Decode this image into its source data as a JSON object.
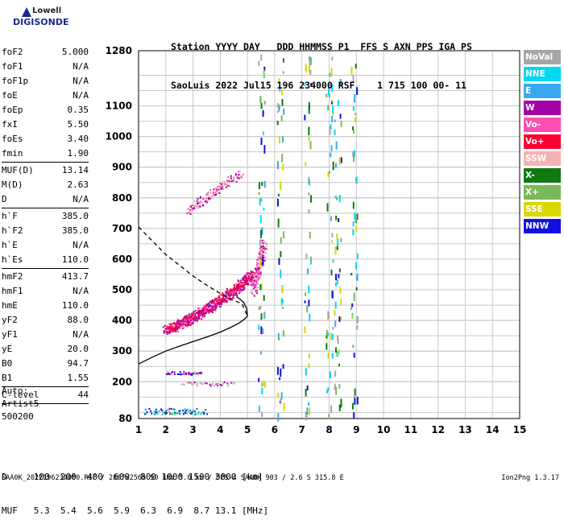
{
  "logo": {
    "line1": "Lowell",
    "line2": "DIGISONDE"
  },
  "header": {
    "line1": "Station YYYY DAY   DDD HHMMSS P1  FFS S AXN PPS IGA PS",
    "line2": "SaoLuis 2022 Jul15 196 234000 RSF    1 715 100 00- 11"
  },
  "params": {
    "g1": [
      {
        "name": "foF2",
        "value": "5.000"
      },
      {
        "name": "foF1",
        "value": "N/A"
      },
      {
        "name": "foF1p",
        "value": "N/A"
      },
      {
        "name": "foE",
        "value": "N/A"
      },
      {
        "name": "foEp",
        "value": "0.35"
      },
      {
        "name": "fxI",
        "value": "5.50"
      },
      {
        "name": "foEs",
        "value": "3.40"
      },
      {
        "name": "fmin",
        "value": "1.90"
      }
    ],
    "g2": [
      {
        "name": "MUF(D)",
        "value": "13.14"
      },
      {
        "name": "M(D)",
        "value": "2.63"
      },
      {
        "name": "D",
        "value": "N/A"
      }
    ],
    "g3": [
      {
        "name": "h`F",
        "value": "385.0"
      },
      {
        "name": "h`F2",
        "value": "385.0"
      },
      {
        "name": "h`E",
        "value": "N/A"
      },
      {
        "name": "h`Es",
        "value": "110.0"
      }
    ],
    "g4": [
      {
        "name": "hmF2",
        "value": "413.7"
      },
      {
        "name": "hmF1",
        "value": "N/A"
      },
      {
        "name": "hmE",
        "value": "110.0"
      },
      {
        "name": "yF2",
        "value": "88.0"
      },
      {
        "name": "yF1",
        "value": "N/A"
      },
      {
        "name": "yE",
        "value": "20.0"
      },
      {
        "name": "B0",
        "value": "94.7"
      },
      {
        "name": "B1",
        "value": "1.55"
      }
    ],
    "g5": [
      {
        "name": "C-level",
        "value": "44"
      }
    ]
  },
  "auto": {
    "line1": "Auto:",
    "line2": "Artist5",
    "line3": "500200"
  },
  "legend": [
    {
      "label": "NoVal",
      "color": "#a6a6a6"
    },
    {
      "label": "NNE",
      "color": "#00d9f0"
    },
    {
      "label": "E",
      "color": "#3aa8f0"
    },
    {
      "label": "W",
      "color": "#a400a8"
    },
    {
      "label": "Vo-",
      "color": "#ff4fb0"
    },
    {
      "label": "Vo+",
      "color": "#ff0033"
    },
    {
      "label": "SSW",
      "color": "#f4b4b4"
    },
    {
      "label": "X-",
      "color": "#0f7a0f"
    },
    {
      "label": "X+",
      "color": "#7ab85a"
    },
    {
      "label": "SSE",
      "color": "#d8d800"
    },
    {
      "label": "NNW",
      "color": "#1010e0"
    }
  ],
  "chart_data": {
    "type": "scatter",
    "title": "",
    "xlabel": "",
    "ylabel": "",
    "xlim": [
      1,
      15
    ],
    "ylim": [
      80,
      1280
    ],
    "x_ticks": [
      "1",
      "2",
      "3",
      "4",
      "5",
      "6",
      "7",
      "8",
      "9",
      "10",
      "11",
      "12",
      "13",
      "14",
      "15"
    ],
    "y_ticks": [
      "80",
      "200",
      "300",
      "400",
      "500",
      "600",
      "700",
      "800",
      "900",
      "1000",
      "1100",
      "1280"
    ],
    "grid": true,
    "series": [
      {
        "color": "#000000",
        "style": "solid",
        "points": [
          [
            1,
            258
          ],
          [
            1.5,
            280
          ],
          [
            2,
            300
          ],
          [
            2.5,
            316
          ],
          [
            3,
            331
          ],
          [
            3.5,
            346
          ],
          [
            4,
            362
          ],
          [
            4.4,
            378
          ],
          [
            4.7,
            392
          ],
          [
            4.9,
            405
          ],
          [
            5.0,
            414
          ],
          [
            4.97,
            440
          ],
          [
            4.85,
            460
          ],
          [
            4.6,
            478
          ]
        ]
      },
      {
        "color": "#000000",
        "style": "dashed",
        "points": [
          [
            1,
            705
          ],
          [
            1.5,
            660
          ],
          [
            2,
            615
          ],
          [
            2.5,
            580
          ],
          [
            3,
            545
          ],
          [
            3.5,
            515
          ],
          [
            4,
            488
          ],
          [
            4.5,
            465
          ],
          [
            4.8,
            455
          ],
          [
            5.0,
            414
          ]
        ]
      }
    ],
    "color_key": [
      "#a400a8",
      "#ff0033",
      "#ff4fb0",
      "#f4b4b4"
    ]
  },
  "footer": {
    "line1": "D     100  200  400  600  800 1000 1500 3000 [km]",
    "line2": "MUF   5.3  5.4  5.6  5.9  6.3  6.9  8.7 13.1 [MHz]"
  },
  "status": "SAA0K_2022196234000.RSF / 280fx256h 50 kHz 5.0 km / DPS-4 SAA0K 903 / 2.6 S 315.8 E",
  "version": "Ion2Png 1.3.17"
}
